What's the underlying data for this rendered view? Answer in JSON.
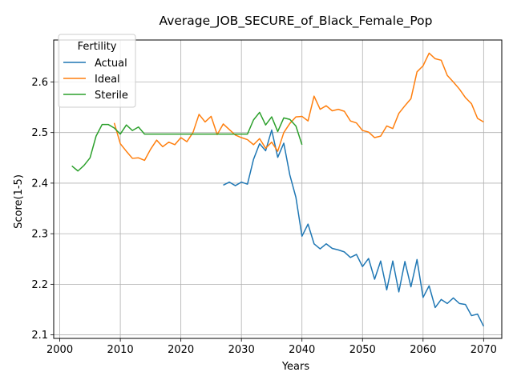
{
  "chart_data": {
    "type": "line",
    "title": "Average_JOB_SECURE_of_Black_Female_Pop",
    "xlabel": "Years",
    "ylabel": "Score(1-5)",
    "xlim": [
      1999,
      2073
    ],
    "ylim": [
      2.093,
      2.683
    ],
    "xticks": [
      2000,
      2010,
      2020,
      2030,
      2040,
      2050,
      2060,
      2070
    ],
    "yticks": [
      2.1,
      2.2,
      2.3,
      2.4,
      2.5,
      2.6
    ],
    "ytick_labels": [
      "2.1",
      "2.2",
      "2.3",
      "2.4",
      "2.5",
      "2.6"
    ],
    "grid": true,
    "legend": {
      "title": "Fertility",
      "placement": "upper-left"
    },
    "series": [
      {
        "name": "Actual",
        "color": "#1f77b4",
        "x": [
          2027,
          2028,
          2029,
          2030,
          2031,
          2032,
          2033,
          2034,
          2035,
          2036,
          2037,
          2038,
          2039,
          2040,
          2041,
          2042,
          2043,
          2044,
          2045,
          2046,
          2047,
          2048,
          2049,
          2050,
          2051,
          2052,
          2053,
          2054,
          2055,
          2056,
          2057,
          2058,
          2059,
          2060,
          2061,
          2062,
          2063,
          2064,
          2065,
          2066,
          2067,
          2068,
          2069,
          2070
        ],
        "y": [
          2.396,
          2.402,
          2.395,
          2.402,
          2.398,
          2.447,
          2.478,
          2.464,
          2.505,
          2.451,
          2.479,
          2.416,
          2.372,
          2.295,
          2.319,
          2.28,
          2.27,
          2.28,
          2.271,
          2.268,
          2.264,
          2.253,
          2.259,
          2.235,
          2.251,
          2.21,
          2.246,
          2.189,
          2.246,
          2.185,
          2.245,
          2.195,
          2.249,
          2.174,
          2.197,
          2.154,
          2.17,
          2.162,
          2.173,
          2.162,
          2.16,
          2.138,
          2.141,
          2.117
        ]
      },
      {
        "name": "Ideal",
        "color": "#ff7f0e",
        "x": [
          2009,
          2010,
          2011,
          2012,
          2013,
          2014,
          2015,
          2016,
          2017,
          2018,
          2019,
          2020,
          2021,
          2022,
          2023,
          2024,
          2025,
          2026,
          2027,
          2028,
          2029,
          2030,
          2031,
          2032,
          2033,
          2034,
          2035,
          2036,
          2037,
          2038,
          2039,
          2040,
          2041,
          2042,
          2043,
          2044,
          2045,
          2046,
          2047,
          2048,
          2049,
          2050,
          2051,
          2052,
          2053,
          2054,
          2055,
          2056,
          2057,
          2058,
          2059,
          2060,
          2061,
          2062,
          2063,
          2064,
          2065,
          2066,
          2067,
          2068,
          2069,
          2070
        ],
        "y": [
          2.519,
          2.478,
          2.463,
          2.449,
          2.45,
          2.445,
          2.467,
          2.485,
          2.472,
          2.481,
          2.476,
          2.49,
          2.482,
          2.5,
          2.536,
          2.521,
          2.532,
          2.496,
          2.517,
          2.506,
          2.495,
          2.49,
          2.486,
          2.476,
          2.488,
          2.469,
          2.481,
          2.463,
          2.5,
          2.518,
          2.531,
          2.532,
          2.523,
          2.572,
          2.546,
          2.553,
          2.543,
          2.546,
          2.542,
          2.523,
          2.519,
          2.504,
          2.501,
          2.49,
          2.493,
          2.513,
          2.508,
          2.538,
          2.553,
          2.567,
          2.62,
          2.632,
          2.657,
          2.646,
          2.643,
          2.613,
          2.6,
          2.586,
          2.569,
          2.557,
          2.528,
          2.521
        ]
      },
      {
        "name": "Sterile",
        "color": "#2ca02c",
        "x": [
          2002,
          2003,
          2004,
          2005,
          2006,
          2007,
          2008,
          2009,
          2010,
          2011,
          2012,
          2013,
          2014,
          2015,
          2016,
          2017,
          2018,
          2019,
          2020,
          2021,
          2022,
          2023,
          2024,
          2025,
          2026,
          2027,
          2028,
          2029,
          2030,
          2031,
          2032,
          2033,
          2034,
          2035,
          2036,
          2037,
          2038,
          2039,
          2040
        ],
        "y": [
          2.434,
          2.424,
          2.435,
          2.45,
          2.493,
          2.516,
          2.516,
          2.509,
          2.497,
          2.515,
          2.504,
          2.511,
          2.497,
          2.497,
          2.497,
          2.497,
          2.497,
          2.497,
          2.497,
          2.497,
          2.497,
          2.497,
          2.497,
          2.497,
          2.497,
          2.497,
          2.497,
          2.497,
          2.497,
          2.497,
          2.525,
          2.54,
          2.515,
          2.531,
          2.502,
          2.529,
          2.526,
          2.513,
          2.476
        ]
      }
    ]
  }
}
